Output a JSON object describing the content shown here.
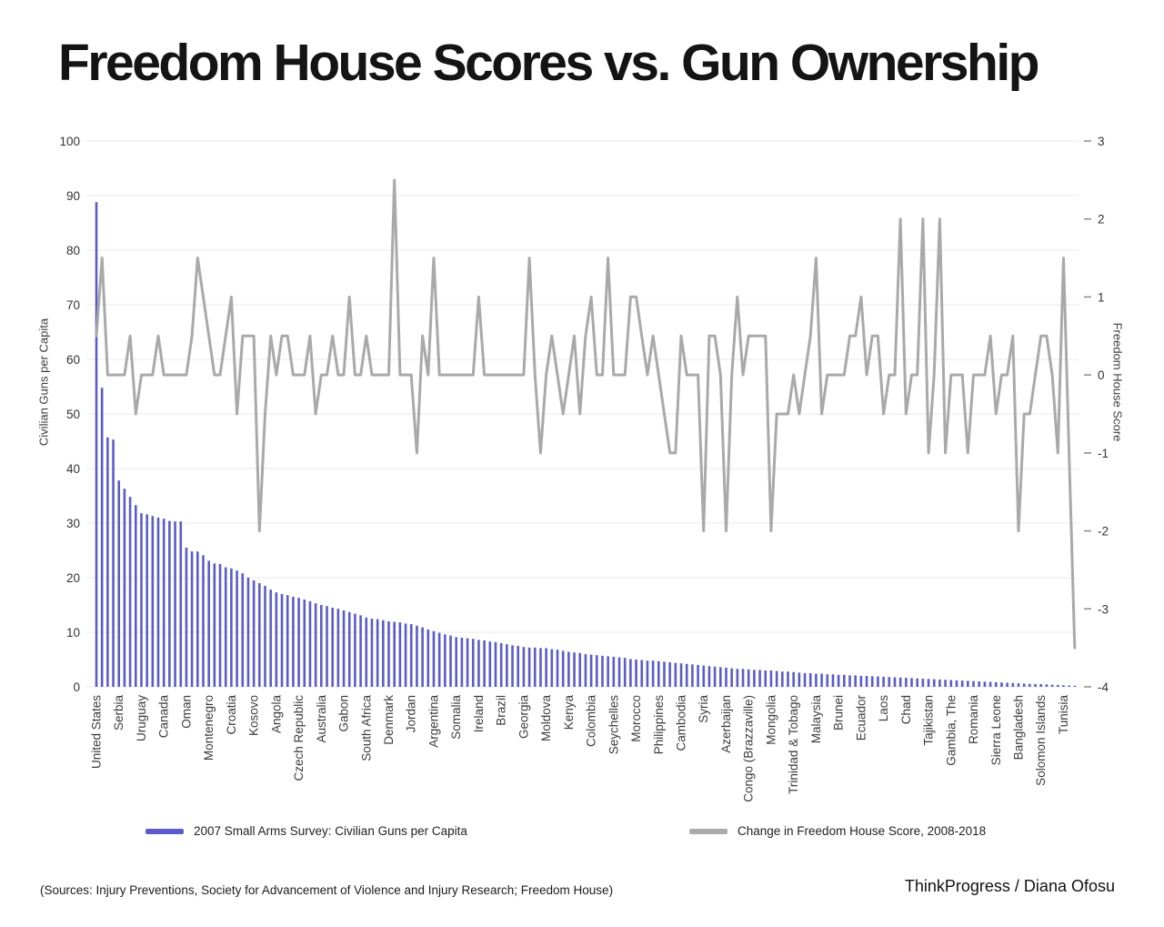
{
  "title": "Freedom House Scores vs. Gun Ownership",
  "legend": {
    "guns": {
      "label": "2007 Small Arms Survey: Civilian Guns per Capita",
      "color": "#5b5cc9"
    },
    "fh": {
      "label": "Change in Freedom House Score, 2008-2018",
      "color": "#ababab"
    }
  },
  "footer": {
    "sources": "(Sources: Injury Preventions, Society for Advancement of Violence and Injury Research; Freedom House)",
    "credit": "ThinkProgress / Diana Ofosu"
  },
  "chart_data": {
    "type": "combo-bar-line",
    "title": "Freedom House Scores vs. Gun Ownership",
    "grid": true,
    "colors": {
      "bar": "#5b5cc9",
      "line": "#a9a9a9",
      "grid": "#e8e8e8",
      "tick_text": "#333333",
      "x_label_text": "#3c3c3c"
    },
    "left_axis": {
      "label": "Civilian Guns per Capita",
      "min": 0,
      "max": 100,
      "tick_step": 10
    },
    "right_axis": {
      "label": "Freedom House Score",
      "min": -4,
      "max": 3,
      "tick_step": 1
    },
    "x_label_every": 4,
    "x_tick_labels": [
      "United States",
      "Serbia",
      "Uruguay",
      "Canada",
      "Oman",
      "Montenegro",
      "Croatia",
      "Kosovo",
      "Angola",
      "Czech Republic",
      "Australia",
      "Gabon",
      "South Africa",
      "Denmark",
      "Jordan",
      "Argentina",
      "Somalia",
      "Ireland",
      "Brazil",
      "Georgia",
      "Moldova",
      "Kenya",
      "Colombia",
      "Seychelles",
      "Morocco",
      "Philippines",
      "Cambodia",
      "Syria",
      "Azerbaijan",
      "Congo (Brazzaville)",
      "Mongolia",
      "Trinidad & Tobago",
      "Malaysia",
      "Brunei",
      "Ecuador",
      "Laos",
      "Chad",
      "Tajikistan",
      "Gambia, The",
      "Romania",
      "Sierra Leone",
      "Bangladesh",
      "Solomon Islands",
      "Tunisia"
    ],
    "series": [
      {
        "name": "2007 Small Arms Survey: Civilian Guns per Capita",
        "type": "bar",
        "axis": "left",
        "color": "#5b5cc9",
        "values": [
          88.8,
          54.8,
          45.7,
          45.3,
          37.8,
          36.3,
          34.8,
          33.3,
          31.8,
          31.6,
          31.3,
          31.0,
          30.8,
          30.4,
          30.3,
          30.3,
          25.5,
          24.8,
          24.8,
          24.1,
          23.1,
          22.6,
          22.5,
          21.9,
          21.7,
          21.3,
          20.8,
          20.0,
          19.5,
          19.0,
          18.5,
          17.8,
          17.3,
          17.0,
          16.8,
          16.5,
          16.3,
          16.0,
          15.7,
          15.3,
          15.0,
          14.8,
          14.5,
          14.3,
          14.0,
          13.7,
          13.4,
          13.1,
          12.7,
          12.5,
          12.4,
          12.2,
          12.0,
          11.9,
          11.8,
          11.6,
          11.5,
          11.2,
          10.9,
          10.5,
          10.2,
          9.9,
          9.6,
          9.4,
          9.1,
          9.0,
          8.9,
          8.8,
          8.6,
          8.5,
          8.3,
          8.2,
          8.0,
          7.8,
          7.6,
          7.5,
          7.3,
          7.2,
          7.2,
          7.1,
          7.1,
          6.9,
          6.8,
          6.6,
          6.4,
          6.3,
          6.2,
          6.0,
          5.9,
          5.8,
          5.7,
          5.6,
          5.5,
          5.4,
          5.3,
          5.1,
          5.0,
          4.9,
          4.8,
          4.8,
          4.7,
          4.6,
          4.5,
          4.4,
          4.3,
          4.2,
          4.1,
          4.0,
          3.9,
          3.8,
          3.7,
          3.6,
          3.5,
          3.4,
          3.3,
          3.3,
          3.2,
          3.1,
          3.1,
          3.0,
          3.0,
          2.9,
          2.8,
          2.8,
          2.7,
          2.6,
          2.5,
          2.5,
          2.4,
          2.4,
          2.3,
          2.3,
          2.2,
          2.2,
          2.1,
          2.1,
          2.0,
          2.0,
          1.95,
          1.9,
          1.85,
          1.8,
          1.75,
          1.7,
          1.65,
          1.6,
          1.55,
          1.5,
          1.45,
          1.4,
          1.35,
          1.3,
          1.25,
          1.2,
          1.15,
          1.1,
          1.05,
          1.0,
          0.95,
          0.9,
          0.85,
          0.8,
          0.75,
          0.7,
          0.65,
          0.6,
          0.55,
          0.5,
          0.5,
          0.45,
          0.4,
          0.35,
          0.3,
          0.25,
          0.2
        ]
      },
      {
        "name": "Change in Freedom House Score, 2008-2018",
        "type": "line",
        "axis": "right",
        "color": "#a9a9a9",
        "values": [
          0.5,
          1.5,
          0,
          0,
          0,
          0,
          0.5,
          -0.5,
          0,
          0,
          0,
          0.5,
          0,
          0,
          0,
          0,
          0,
          0.5,
          1.5,
          1,
          0.5,
          0,
          0,
          0.5,
          1,
          -0.5,
          0.5,
          0.5,
          0.5,
          -2,
          -0.5,
          0.5,
          0,
          0.5,
          0.5,
          0,
          0,
          0,
          0.5,
          -0.5,
          0,
          0,
          0.5,
          0,
          0,
          1,
          0,
          0,
          0.5,
          0,
          0,
          0,
          0,
          2.5,
          0,
          0,
          0,
          -1,
          0.5,
          0,
          1.5,
          0,
          0,
          0,
          0,
          0,
          0,
          0,
          1,
          0,
          0,
          0,
          0,
          0,
          0,
          0,
          0,
          1.5,
          0,
          -1,
          0,
          0.5,
          0,
          -0.5,
          0,
          0.5,
          -0.5,
          0.5,
          1,
          0,
          0,
          1.5,
          0,
          0,
          0,
          1,
          1,
          0.5,
          0,
          0.5,
          0,
          -0.5,
          -1,
          -1,
          0.5,
          0,
          0,
          0,
          -2,
          0.5,
          0.5,
          0,
          -2,
          0,
          1,
          0,
          0.5,
          0.5,
          0.5,
          0.5,
          -2,
          -0.5,
          -0.5,
          -0.5,
          0,
          -0.5,
          0,
          0.5,
          1.5,
          -0.5,
          0,
          0,
          0,
          0,
          0.5,
          0.5,
          1,
          0,
          0.5,
          0.5,
          -0.5,
          0,
          0,
          2,
          -0.5,
          0,
          0,
          2,
          -1,
          0,
          2,
          -1,
          0,
          0,
          0,
          -1,
          0,
          0,
          0,
          0.5,
          -0.5,
          0,
          0,
          0.5,
          -2,
          -0.5,
          -0.5,
          0,
          0.5,
          0.5,
          0,
          -1,
          1.5,
          -1,
          -3.5
        ]
      }
    ]
  }
}
